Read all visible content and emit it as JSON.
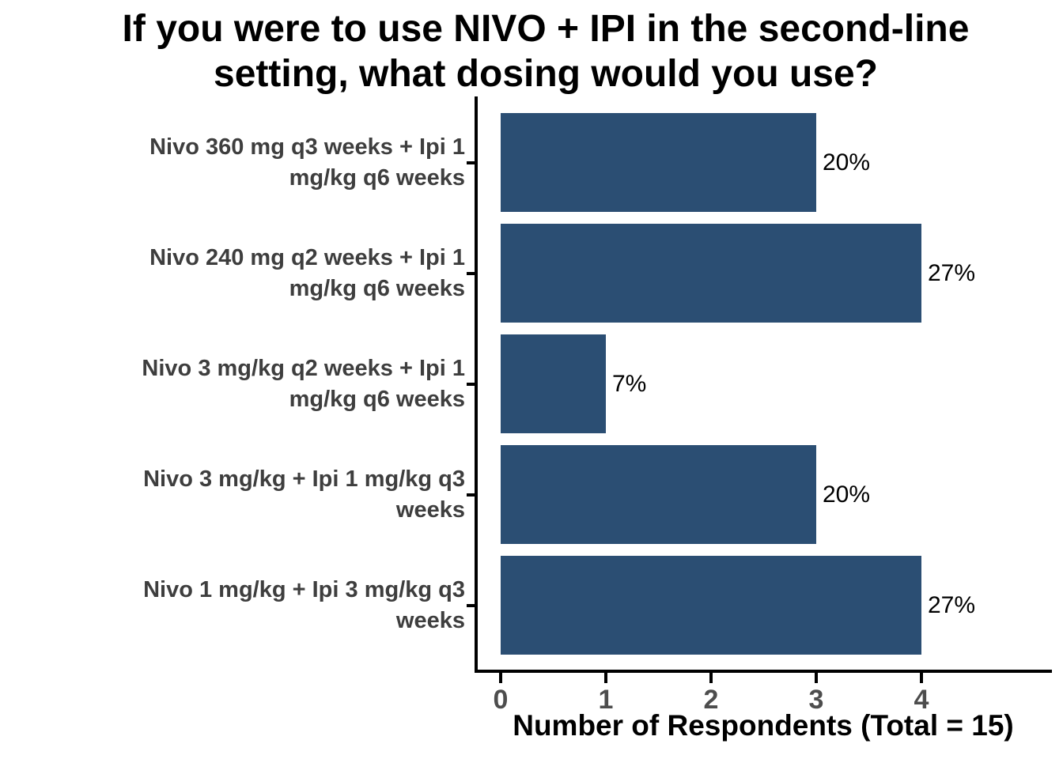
{
  "title": {
    "text": "If you were to use NIVO + IPI in the second-line setting, what dosing would you use?",
    "lines": [
      "If you were to use NIVO + IPI in the second-line",
      "setting, what dosing would you use?"
    ]
  },
  "chart_data": {
    "type": "bar",
    "orientation": "horizontal",
    "title": "If you were to use NIVO + IPI in the second-line setting, what dosing would you use?",
    "categories": [
      "Nivo 360 mg q3 weeks + Ipi 1 mg/kg q6 weeks",
      "Nivo 240 mg q2 weeks + Ipi 1 mg/kg q6 weeks",
      "Nivo 3 mg/kg q2 weeks + Ipi 1 mg/kg q6 weeks",
      "Nivo 3 mg/kg + Ipi 1 mg/kg q3 weeks",
      "Nivo 1 mg/kg + Ipi 3 mg/kg q3 weeks"
    ],
    "category_label_lines": [
      [
        "Nivo 360 mg q3 weeks + Ipi 1",
        "mg/kg q6 weeks"
      ],
      [
        "Nivo 240 mg q2 weeks + Ipi 1",
        "mg/kg q6 weeks"
      ],
      [
        "Nivo 3 mg/kg q2 weeks + Ipi 1",
        "mg/kg q6 weeks"
      ],
      [
        "Nivo 3 mg/kg + Ipi 1 mg/kg q3",
        "weeks"
      ],
      [
        "Nivo 1 mg/kg + Ipi 3 mg/kg q3",
        "weeks"
      ]
    ],
    "values": [
      3,
      4,
      1,
      3,
      4
    ],
    "bar_labels": [
      "20%",
      "27%",
      "7%",
      "20%",
      "27%"
    ],
    "xlabel": "Number of Respondents (Total = 15)",
    "x_ticks": [
      "0",
      "1",
      "2",
      "3",
      "4"
    ],
    "xlim": [
      0,
      5.25
    ],
    "total_respondents": 15,
    "grid": false,
    "legend": "none",
    "colors": {
      "bar": "#2b4e73",
      "axis": "#000000",
      "x_tick_label": "#4d4d4d",
      "category_label": "#3e3e3e",
      "title": "#000000",
      "background": "#ffffff"
    }
  }
}
